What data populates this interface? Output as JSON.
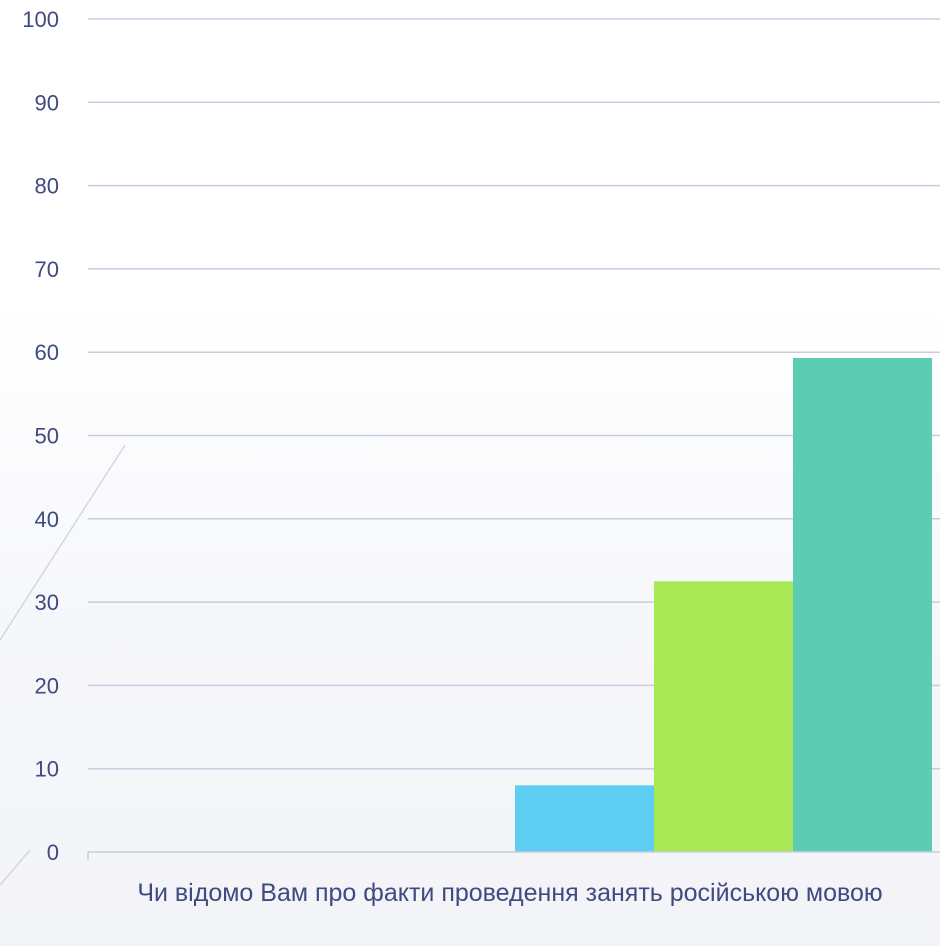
{
  "chart_data": {
    "type": "bar",
    "categories": [
      "Чи відомо Вам про факти проведення занять російською мовою"
    ],
    "series": [
      {
        "values": [
          0
        ]
      },
      {
        "values": [
          8
        ]
      },
      {
        "values": [
          32.5
        ]
      },
      {
        "values": [
          59.3
        ]
      }
    ],
    "ylim": [
      0,
      100
    ],
    "yticks": [
      0,
      10,
      20,
      30,
      40,
      50,
      60,
      70,
      80,
      90,
      100
    ],
    "grid": true,
    "legend": "none",
    "colors": [
      "#5b9bd5",
      "#5ecdf2",
      "#a8e955",
      "#5ccdb2"
    ],
    "grid_color": "#c9cbe3",
    "label_color": "#3f4a80"
  }
}
